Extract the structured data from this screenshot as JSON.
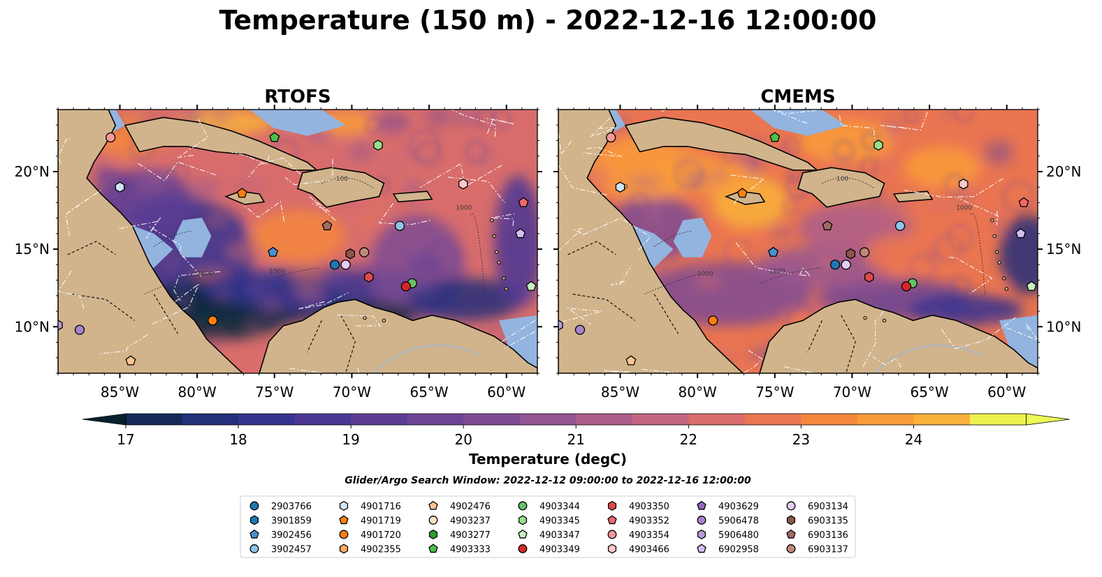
{
  "figure": {
    "title": "Temperature (150 m) - 2022-12-16 12:00:00",
    "search_window": "Glider/Argo Search Window: 2022-12-12 09:00:00 to 2022-12-16 12:00:00"
  },
  "panels": [
    {
      "title": "RTOFS",
      "model": "rtofs"
    },
    {
      "title": "CMEMS",
      "model": "cmems"
    }
  ],
  "map_extent": {
    "lon": [
      -89,
      -58
    ],
    "lat": [
      7,
      24
    ]
  },
  "lon_ticks": [
    {
      "value": -85,
      "label": "85°W"
    },
    {
      "value": -80,
      "label": "80°W"
    },
    {
      "value": -75,
      "label": "75°W"
    },
    {
      "value": -70,
      "label": "70°W"
    },
    {
      "value": -65,
      "label": "65°W"
    },
    {
      "value": -60,
      "label": "60°W"
    }
  ],
  "lat_ticks": [
    {
      "value": 10,
      "label": "10°N"
    },
    {
      "value": 15,
      "label": "15°N"
    },
    {
      "value": 20,
      "label": "20°N"
    }
  ],
  "contour_labels": [
    "100",
    "1000"
  ],
  "colorbar": {
    "label": "Temperature (degC)",
    "min": 17,
    "max": 24.5,
    "step": 0.5,
    "ticks": [
      "17",
      "18",
      "19",
      "20",
      "21",
      "22",
      "23",
      "24"
    ],
    "colors": [
      "#0b2a3c",
      "#152a58",
      "#23307a",
      "#35338f",
      "#4b3694",
      "#5c3d96",
      "#6d4595",
      "#7d4b93",
      "#945592",
      "#ab5d89",
      "#c26580",
      "#d86d6c",
      "#ea7551",
      "#f4873c",
      "#f99c3a",
      "#f9b23b",
      "#f4cc40",
      "#eef150"
    ],
    "under_color": "#07202d",
    "over_color": "#edfa55"
  },
  "colors": {
    "land": "#d1b48c",
    "shelf": "#93b4df",
    "coast": "#000000",
    "river": "#9bb8d6"
  },
  "platforms": [
    {
      "id": "2903766",
      "marker": "circle",
      "color": "#1f77b4",
      "lon": -71.1,
      "lat": 14.0
    },
    {
      "id": "3901859",
      "marker": "hexagon",
      "color": "#1f77b4",
      "lon": null,
      "lat": null
    },
    {
      "id": "3902456",
      "marker": "pentagon",
      "color": "#4a90d0",
      "lon": -75.1,
      "lat": 14.8
    },
    {
      "id": "3902457",
      "marker": "circle",
      "color": "#8fc3ea",
      "lon": -66.9,
      "lat": 16.5
    },
    {
      "id": "4901716",
      "marker": "hexagon",
      "color": "#cfe6f7",
      "lon": -85.0,
      "lat": 19.0
    },
    {
      "id": "4901719",
      "marker": "pentagon",
      "color": "#ff7f0e",
      "lon": -77.1,
      "lat": 18.6
    },
    {
      "id": "4901720",
      "marker": "circle",
      "color": "#ff7f0e",
      "lon": -79.0,
      "lat": 10.4
    },
    {
      "id": "4902355",
      "marker": "hexagon",
      "color": "#ffad5e",
      "lon": null,
      "lat": null
    },
    {
      "id": "4902476",
      "marker": "pentagon",
      "color": "#ffc493",
      "lon": -84.3,
      "lat": 7.8
    },
    {
      "id": "4903237",
      "marker": "circle",
      "color": "#ffe0c2",
      "lon": null,
      "lat": null
    },
    {
      "id": "4903277",
      "marker": "hexagon",
      "color": "#2ca02c",
      "lon": null,
      "lat": null
    },
    {
      "id": "4903333",
      "marker": "pentagon",
      "color": "#4cc04c",
      "lon": -75.0,
      "lat": 22.2
    },
    {
      "id": "4903344",
      "marker": "circle",
      "color": "#66c266",
      "lon": -66.1,
      "lat": 12.8
    },
    {
      "id": "4903345",
      "marker": "hexagon",
      "color": "#98df8a",
      "lon": -68.3,
      "lat": 21.7
    },
    {
      "id": "4903347",
      "marker": "pentagon",
      "color": "#c7f0c0",
      "lon": -58.4,
      "lat": 12.6
    },
    {
      "id": "4903349",
      "marker": "circle",
      "color": "#d62728",
      "lon": -66.5,
      "lat": 12.6
    },
    {
      "id": "4903350",
      "marker": "hexagon",
      "color": "#e04a4b",
      "lon": -68.9,
      "lat": 13.2
    },
    {
      "id": "4903352",
      "marker": "pentagon",
      "color": "#f0686a",
      "lon": -58.9,
      "lat": 18.0
    },
    {
      "id": "4903354",
      "marker": "circle",
      "color": "#f7989a",
      "lon": -85.6,
      "lat": 22.2
    },
    {
      "id": "4903466",
      "marker": "hexagon",
      "color": "#ffc8c8",
      "lon": -62.8,
      "lat": 19.2
    },
    {
      "id": "4903629",
      "marker": "pentagon",
      "color": "#9467bd",
      "lon": null,
      "lat": null
    },
    {
      "id": "5906478",
      "marker": "circle",
      "color": "#a585cb",
      "lon": -87.6,
      "lat": 9.8
    },
    {
      "id": "5906480",
      "marker": "hexagon",
      "color": "#b79bd6",
      "lon": -89.0,
      "lat": 10.1
    },
    {
      "id": "6902958",
      "marker": "pentagon",
      "color": "#d3bff0",
      "lon": -59.1,
      "lat": 16.0
    },
    {
      "id": "6903134",
      "marker": "circle",
      "color": "#e6cdf5",
      "lon": -70.4,
      "lat": 14.0
    },
    {
      "id": "6903135",
      "marker": "hexagon",
      "color": "#8c564b",
      "lon": -70.1,
      "lat": 14.7
    },
    {
      "id": "6903136",
      "marker": "pentagon",
      "color": "#a16b5f",
      "lon": -71.6,
      "lat": 16.5
    },
    {
      "id": "6903137",
      "marker": "circle",
      "color": "#c08978",
      "lon": -69.2,
      "lat": 14.8
    }
  ]
}
